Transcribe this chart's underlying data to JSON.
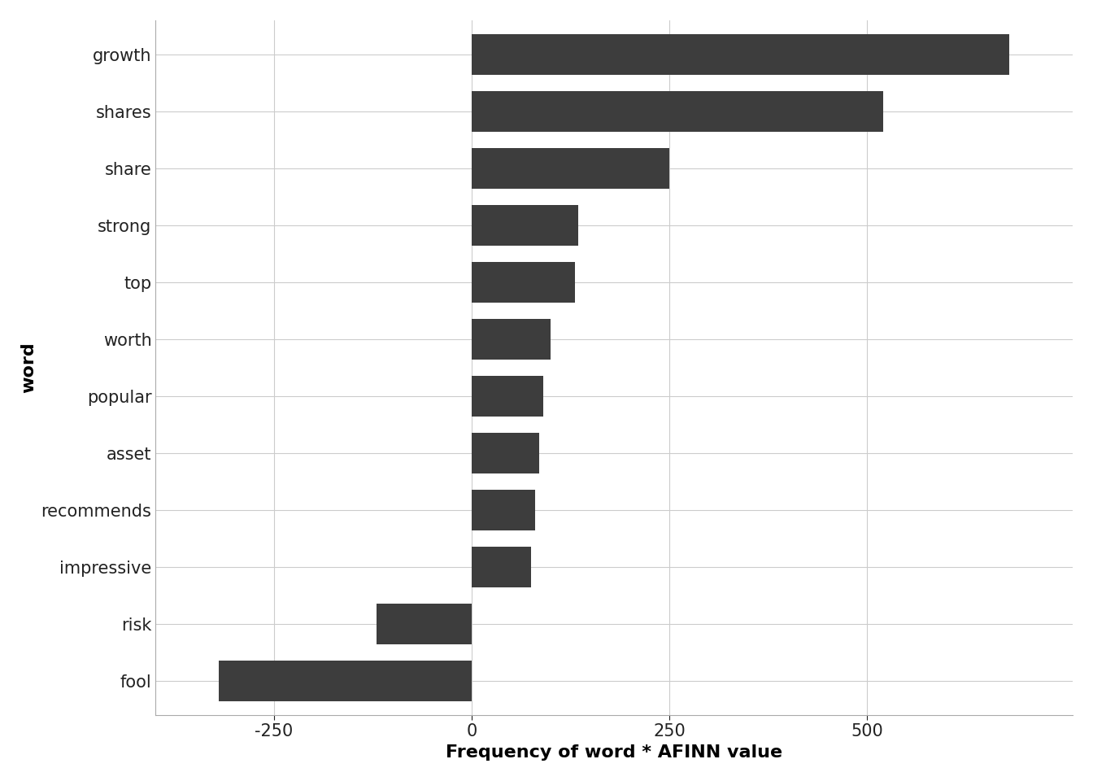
{
  "words": [
    "fool",
    "risk",
    "impressive",
    "recommends",
    "asset",
    "popular",
    "worth",
    "top",
    "strong",
    "share",
    "shares",
    "growth"
  ],
  "values": [
    -320,
    -120,
    75,
    80,
    85,
    90,
    100,
    130,
    135,
    250,
    520,
    680
  ],
  "bar_color": "#3d3d3d",
  "xlabel": "Frequency of word * AFINN value",
  "ylabel": "word",
  "xlim": [
    -400,
    760
  ],
  "plot_bg_color": "#ffffff",
  "fig_bg_color": "#ffffff",
  "grid_color": "#cccccc",
  "xticks": [
    -250,
    0,
    250,
    500
  ],
  "tick_fontsize": 15,
  "label_fontsize": 16,
  "bar_height": 0.72
}
